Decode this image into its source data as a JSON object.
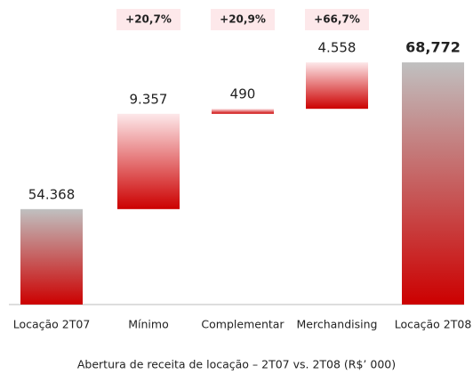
{
  "chart_data": {
    "type": "waterfall",
    "title": "Abertura de receita de locação – 2T07 vs. 2T08 (R$’ 000)",
    "categories": [
      "Locação 2T07",
      "Mínimo",
      "Complementar",
      "Merchandising",
      "Locação 2T08"
    ],
    "values": [
      54368,
      9357,
      490,
      4558,
      68772
    ],
    "value_labels": [
      "54.368",
      "9.357",
      "490",
      "4.558",
      "68,772"
    ],
    "is_total": [
      true,
      false,
      false,
      false,
      true
    ],
    "annotations": [
      null,
      "+20,7%",
      "+20,9%",
      "+66,7%",
      null
    ],
    "total_colors": [
      "#c0c0c0",
      "#cc0000"
    ],
    "increase_colors": [
      "#fde8ea",
      "#cc0000"
    ],
    "annotation_background": "#fde8ea",
    "ylim": [
      45000,
      70000
    ]
  }
}
